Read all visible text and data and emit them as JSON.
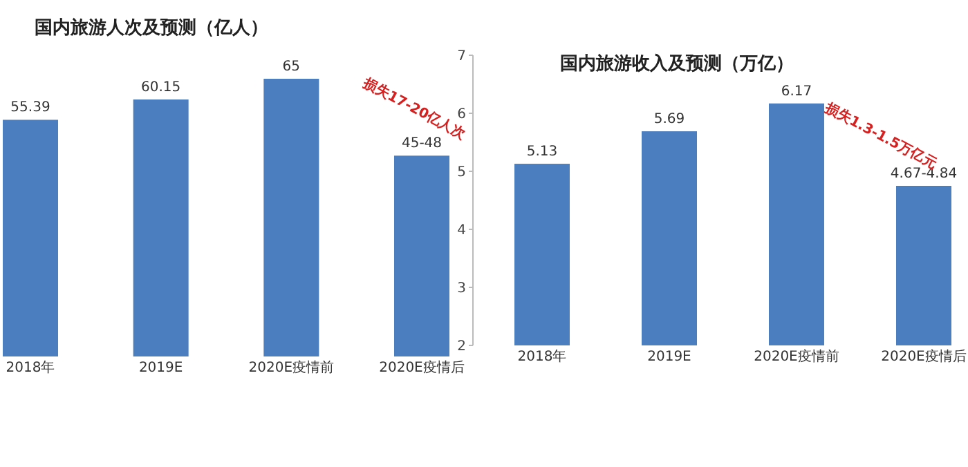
{
  "chart_data": [
    {
      "type": "bar",
      "title": "国内旅游人次及预测（亿人）",
      "categories": [
        "2018年",
        "2019E",
        "2020E疫情前",
        "2020E疫情后"
      ],
      "values": [
        55.39,
        60.15,
        65,
        47
      ],
      "value_labels": [
        "55.39",
        "60.15",
        "65",
        "45-48"
      ],
      "color": "#4a7ebf",
      "tick_labels": "x",
      "annotations": [
        "损失17-20亿人次"
      ]
    },
    {
      "type": "bar",
      "title": "国内旅游收入及预测（万亿）",
      "categories": [
        "2018年",
        "2019E",
        "2020E疫情前",
        "2020E疫情后"
      ],
      "values": [
        5.13,
        5.69,
        6.17,
        4.75
      ],
      "value_labels": [
        "5.13",
        "5.69",
        "6.17",
        "4.67-4.84"
      ],
      "color": "#4a7ebf",
      "ylim": [
        2,
        7
      ],
      "yticks": [
        2,
        3,
        4,
        5,
        6,
        7
      ],
      "annotations": [
        "损失1.3-1.5万亿元"
      ]
    }
  ]
}
